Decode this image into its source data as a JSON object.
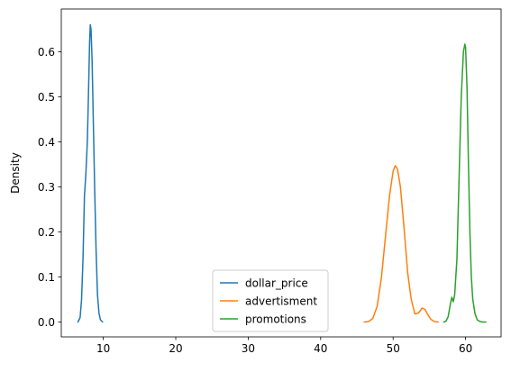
{
  "chart_data": {
    "type": "line",
    "title": "",
    "xlabel": "",
    "ylabel": "Density",
    "xlim": [
      4.2,
      64.9
    ],
    "ylim": [
      -0.0331,
      0.6951
    ],
    "xticks": [
      10,
      20,
      30,
      40,
      50,
      60
    ],
    "yticks": [
      0.0,
      0.1,
      0.2,
      0.3,
      0.4,
      0.5,
      0.6
    ],
    "xtick_labels": [
      "10",
      "20",
      "30",
      "40",
      "50",
      "60"
    ],
    "ytick_labels": [
      "0.0",
      "0.1",
      "0.2",
      "0.3",
      "0.4",
      "0.5",
      "0.6"
    ],
    "grid": false,
    "legend": "lower-center",
    "series": [
      {
        "name": "dollar_price",
        "color": "#1f77b4",
        "x": [
          6.5,
          6.8,
          7.0,
          7.2,
          7.4,
          7.6,
          7.8,
          7.95,
          8.1,
          8.2,
          8.3,
          8.45,
          8.6,
          8.8,
          9.0,
          9.2,
          9.4,
          9.6,
          9.9
        ],
        "y": [
          0.0,
          0.01,
          0.05,
          0.14,
          0.28,
          0.33,
          0.4,
          0.5,
          0.62,
          0.66,
          0.65,
          0.58,
          0.46,
          0.3,
          0.16,
          0.06,
          0.02,
          0.005,
          0.0
        ]
      },
      {
        "name": "advertisment",
        "color": "#ff7f0e",
        "x": [
          46.0,
          46.6,
          47.2,
          47.8,
          48.4,
          49.0,
          49.5,
          50.0,
          50.3,
          50.6,
          51.0,
          51.5,
          52.0,
          52.5,
          53.0,
          53.5,
          54.0,
          54.4,
          54.8,
          55.2,
          55.7,
          56.2
        ],
        "y": [
          0.0,
          0.001,
          0.008,
          0.035,
          0.1,
          0.2,
          0.28,
          0.335,
          0.347,
          0.34,
          0.3,
          0.21,
          0.11,
          0.05,
          0.018,
          0.02,
          0.031,
          0.028,
          0.016,
          0.006,
          0.001,
          0.0
        ]
      },
      {
        "name": "promotions",
        "color": "#2ca02c",
        "x": [
          57.0,
          57.3,
          57.6,
          57.9,
          58.1,
          58.3,
          58.5,
          58.8,
          59.1,
          59.4,
          59.7,
          59.9,
          60.0,
          60.2,
          60.4,
          60.6,
          60.8,
          61.0,
          61.3,
          61.6,
          62.0,
          62.4,
          62.8
        ],
        "y": [
          0.0,
          0.002,
          0.012,
          0.04,
          0.055,
          0.045,
          0.06,
          0.14,
          0.32,
          0.5,
          0.6,
          0.617,
          0.61,
          0.52,
          0.35,
          0.2,
          0.1,
          0.05,
          0.018,
          0.005,
          0.001,
          0.0,
          0.0
        ]
      }
    ]
  }
}
